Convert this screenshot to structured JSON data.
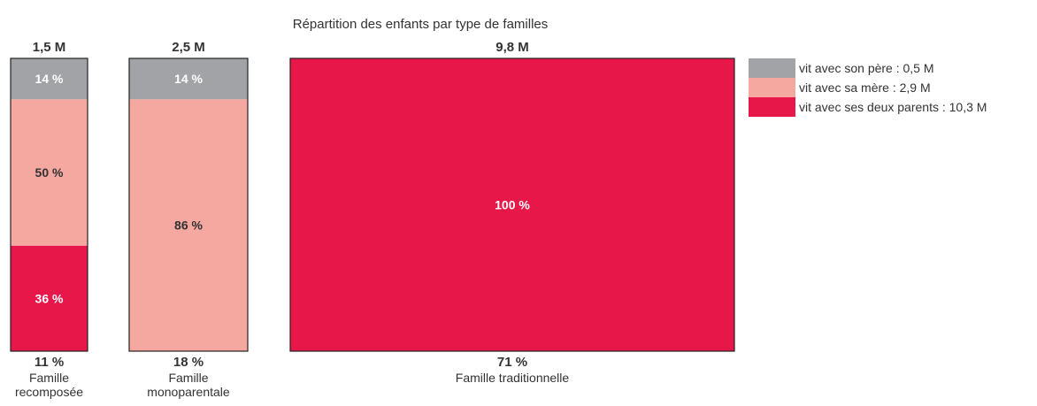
{
  "chart_data": {
    "type": "bar",
    "subtype": "marimekko",
    "title": "Répartition des enfants par type de familles",
    "categories": [
      {
        "name": "Famille recomposée",
        "name_lines": [
          "Famille",
          "recomposée"
        ],
        "total": "1,5 M",
        "share": 11,
        "share_label": "11 %"
      },
      {
        "name": "Famille monoparentale",
        "name_lines": [
          "Famille",
          "monoparentale"
        ],
        "total": "2,5 M",
        "share": 18,
        "share_label": "18 %"
      },
      {
        "name": "Famille traditionnelle",
        "name_lines": [
          "Famille traditionnelle"
        ],
        "total": "9,8 M",
        "share": 71,
        "share_label": "71 %"
      }
    ],
    "series": [
      {
        "name": "vit avec son père : 0,5 M",
        "values": [
          14,
          14,
          0
        ],
        "labels": [
          "14 %",
          "14 %",
          ""
        ]
      },
      {
        "name": "vit avec sa mère : 2,9 M",
        "values": [
          50,
          86,
          0
        ],
        "labels": [
          "50 %",
          "86 %",
          ""
        ]
      },
      {
        "name": "vit avec ses deux parents : 10,3 M",
        "values": [
          36,
          0,
          100
        ],
        "labels": [
          "36 %",
          "",
          "100 %"
        ]
      }
    ],
    "ylim": [
      0,
      100
    ],
    "legend": "top-right"
  },
  "colors": {
    "father": "#a2a3a6",
    "mother": "#f4a8a0",
    "both": "#e8174a",
    "text_dark": "#333333",
    "text_light": "#ffffff",
    "border": "#222222"
  }
}
